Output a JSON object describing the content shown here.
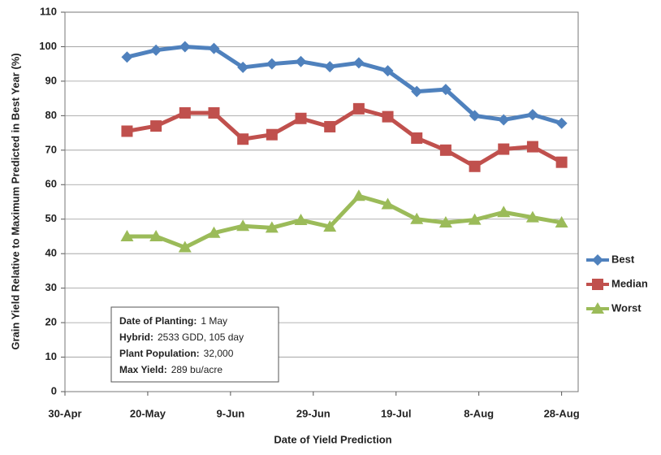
{
  "chart_data": {
    "type": "line",
    "x_label": "Date of Yield Prediction",
    "y_label": "Grain Yield Relative to Maximum Predicted in Best Year (%)",
    "x": [
      135,
      142,
      149,
      156,
      163,
      170,
      177,
      184,
      191,
      198,
      205,
      212,
      219,
      226,
      233,
      240
    ],
    "xlim": [
      120,
      244
    ],
    "xticks": [
      {
        "value": 120,
        "label": "30-Apr"
      },
      {
        "value": 140,
        "label": "20-May"
      },
      {
        "value": 160,
        "label": "9-Jun"
      },
      {
        "value": 180,
        "label": "29-Jun"
      },
      {
        "value": 200,
        "label": "19-Jul"
      },
      {
        "value": 220,
        "label": "8-Aug"
      },
      {
        "value": 240,
        "label": "28-Aug"
      }
    ],
    "ylim": [
      0,
      110
    ],
    "yticks": [
      0,
      10,
      20,
      30,
      40,
      50,
      60,
      70,
      80,
      90,
      100,
      110
    ],
    "grid": true,
    "legend": "right",
    "series": [
      {
        "name": "Best",
        "color": "#4f81bd",
        "marker": "diamond",
        "values": [
          97,
          99,
          100,
          99.5,
          94,
          95,
          95.7,
          94.2,
          95.3,
          93,
          87,
          87.6,
          80,
          78.8,
          80.3,
          77.8
        ]
      },
      {
        "name": "Median",
        "color": "#c0504d",
        "marker": "square",
        "values": [
          75.5,
          77,
          80.8,
          80.8,
          73.2,
          74.5,
          79.2,
          76.8,
          82,
          79.7,
          73.5,
          70,
          65.3,
          70.3,
          71,
          66.5
        ]
      },
      {
        "name": "Worst",
        "color": "#9bbb59",
        "marker": "triangle",
        "values": [
          45,
          45,
          41.8,
          46,
          48,
          47.5,
          49.7,
          47.8,
          56.7,
          54.3,
          50,
          49,
          49.8,
          52,
          50.5,
          49
        ]
      }
    ],
    "annotations": [
      {
        "label": "Date of Planting:",
        "value": "1 May"
      },
      {
        "label": "Hybrid:",
        "value": "2533 GDD, 105 day"
      },
      {
        "label": "Plant Population:",
        "value": "32,000"
      },
      {
        "label": "Max Yield:",
        "value": "289 bu/acre"
      }
    ]
  }
}
